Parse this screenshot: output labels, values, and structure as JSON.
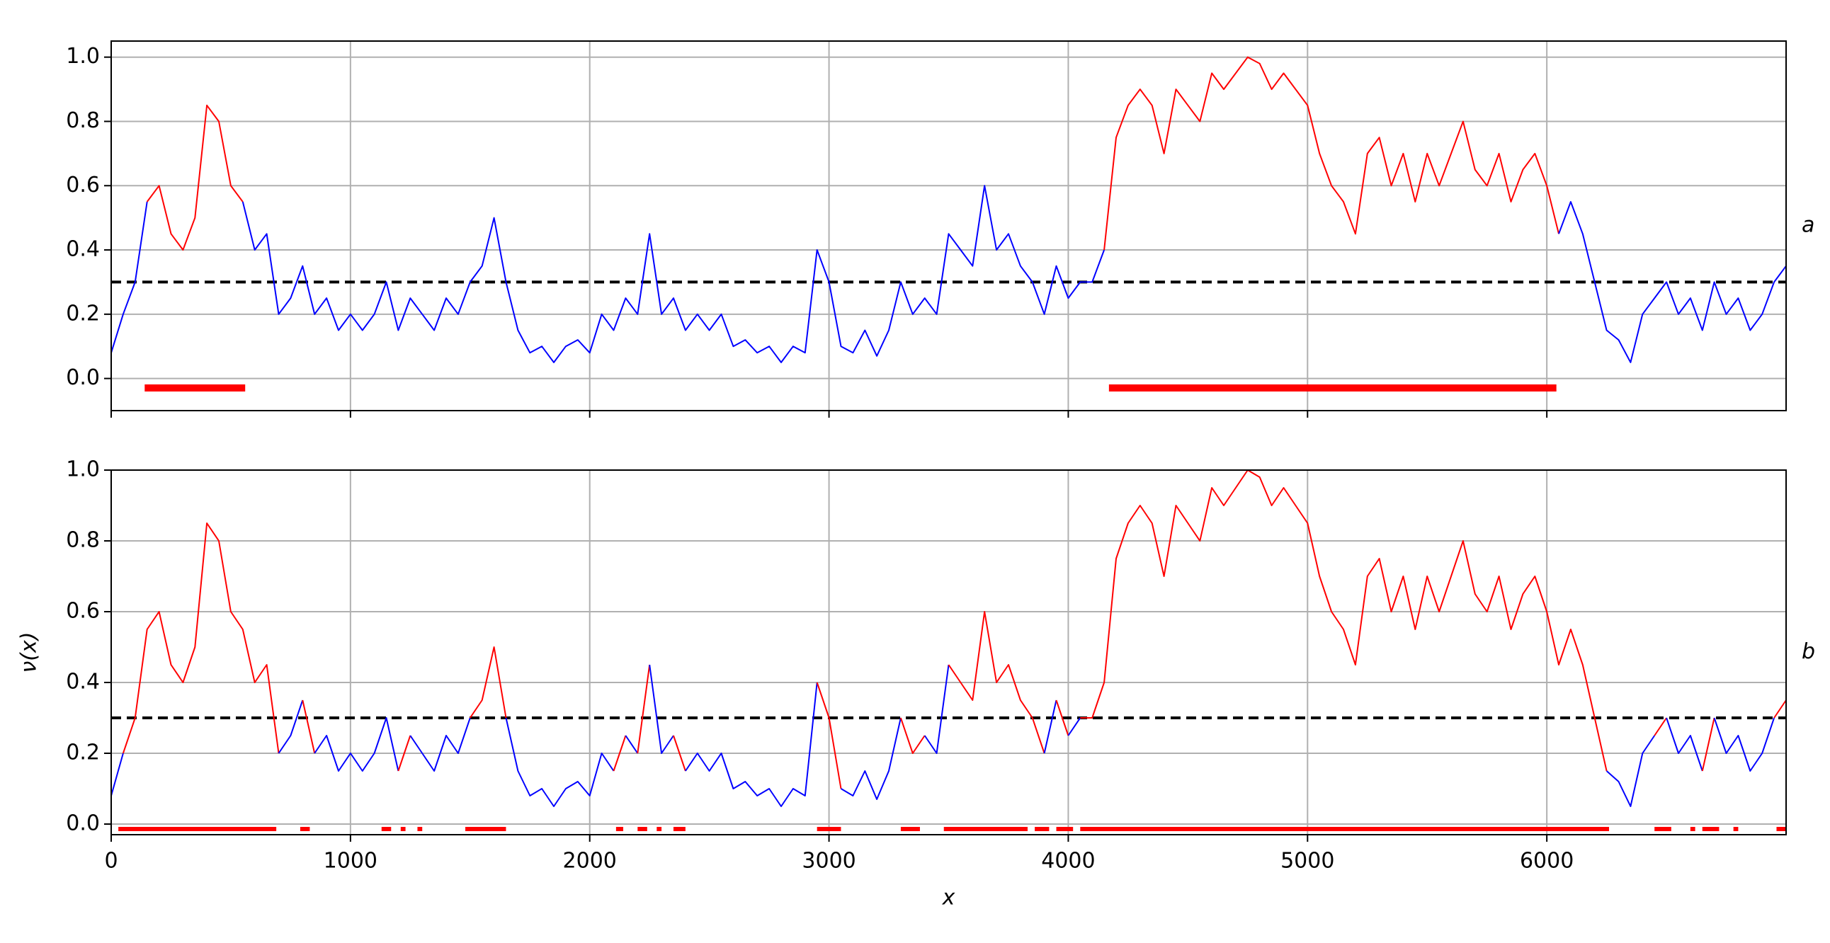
{
  "chart_data": [
    {
      "type": "line",
      "panel_label": "a",
      "xlim": [
        0,
        7000
      ],
      "ylim": [
        -0.1,
        1.05
      ],
      "xticks": [
        0,
        1000,
        2000,
        3000,
        4000,
        5000,
        6000
      ],
      "xtick_labels": false,
      "yticks": [
        {
          "value": 0,
          "label": "0.0"
        },
        {
          "value": 0.2,
          "label": "0.2"
        },
        {
          "value": 0.4,
          "label": "0.4"
        },
        {
          "value": 0.6,
          "label": "0.6"
        },
        {
          "value": 0.8,
          "label": "0.8"
        },
        {
          "value": 1,
          "label": "1.0"
        }
      ],
      "grid": true,
      "threshold": 0.3,
      "highlight_color": "#ff0000",
      "intervals": [
        [
          140,
          560
        ],
        [
          4170,
          6040
        ]
      ],
      "x": [
        0,
        50,
        100,
        150,
        200,
        250,
        300,
        350,
        400,
        450,
        500,
        550,
        600,
        650,
        700,
        750,
        800,
        850,
        900,
        950,
        1000,
        1050,
        1100,
        1150,
        1200,
        1250,
        1300,
        1350,
        1400,
        1450,
        1500,
        1550,
        1600,
        1650,
        1700,
        1750,
        1800,
        1850,
        1900,
        1950,
        2000,
        2050,
        2100,
        2150,
        2200,
        2250,
        2300,
        2350,
        2400,
        2450,
        2500,
        2550,
        2600,
        2650,
        2700,
        2750,
        2800,
        2850,
        2900,
        2950,
        3000,
        3050,
        3100,
        3150,
        3200,
        3250,
        3300,
        3350,
        3400,
        3450,
        3500,
        3550,
        3600,
        3650,
        3700,
        3750,
        3800,
        3850,
        3900,
        3950,
        4000,
        4050,
        4100,
        4150,
        4200,
        4250,
        4300,
        4350,
        4400,
        4450,
        4500,
        4550,
        4600,
        4650,
        4700,
        4750,
        4800,
        4850,
        4900,
        4950,
        5000,
        5050,
        5100,
        5150,
        5200,
        5250,
        5300,
        5350,
        5400,
        5450,
        5500,
        5550,
        5600,
        5650,
        5700,
        5750,
        5800,
        5850,
        5900,
        5950,
        6000,
        6050,
        6100,
        6150,
        6200,
        6250,
        6300,
        6350,
        6400,
        6450,
        6500,
        6550,
        6600,
        6650,
        6700,
        6750,
        6800,
        6850,
        6900,
        6950,
        7000
      ],
      "series": [
        {
          "color": "#0000ff",
          "values": [
            0.08,
            0.2,
            0.3,
            0.55,
            0.6,
            0.45,
            0.4,
            0.5,
            0.85,
            0.8,
            0.6,
            0.55,
            0.4,
            0.45,
            0.2,
            0.25,
            0.35,
            0.2,
            0.25,
            0.15,
            0.2,
            0.15,
            0.2,
            0.3,
            0.15,
            0.25,
            0.2,
            0.15,
            0.25,
            0.2,
            0.3,
            0.35,
            0.5,
            0.3,
            0.15,
            0.08,
            0.1,
            0.05,
            0.1,
            0.12,
            0.08,
            0.2,
            0.15,
            0.25,
            0.2,
            0.45,
            0.2,
            0.25,
            0.15,
            0.2,
            0.15,
            0.2,
            0.1,
            0.12,
            0.08,
            0.1,
            0.05,
            0.1,
            0.08,
            0.4,
            0.3,
            0.1,
            0.08,
            0.15,
            0.07,
            0.15,
            0.3,
            0.2,
            0.25,
            0.2,
            0.45,
            0.4,
            0.35,
            0.6,
            0.4,
            0.45,
            0.35,
            0.3,
            0.2,
            0.35,
            0.25,
            0.3,
            0.3,
            0.4,
            0.75,
            0.85,
            0.9,
            0.85,
            0.7,
            0.9,
            0.85,
            0.8,
            0.95,
            0.9,
            0.95,
            1.0,
            0.98,
            0.9,
            0.95,
            0.9,
            0.85,
            0.7,
            0.6,
            0.55,
            0.45,
            0.7,
            0.75,
            0.6,
            0.7,
            0.55,
            0.7,
            0.6,
            0.7,
            0.8,
            0.65,
            0.6,
            0.7,
            0.55,
            0.65,
            0.7,
            0.6,
            0.45,
            0.55,
            0.45,
            0.3,
            0.15,
            0.12,
            0.05,
            0.2,
            0.25,
            0.3,
            0.2,
            0.25,
            0.15,
            0.3,
            0.2,
            0.25,
            0.15,
            0.2,
            0.3,
            0.35
          ]
        }
      ]
    },
    {
      "type": "line",
      "panel_label": "b",
      "xlabel": "x",
      "ylabel": "ν(x)",
      "xlim": [
        0,
        7000
      ],
      "ylim": [
        -0.03,
        1.0
      ],
      "xticks": [
        0,
        1000,
        2000,
        3000,
        4000,
        5000,
        6000
      ],
      "xtick_labels": true,
      "yticks": [
        {
          "value": 0,
          "label": "0.0"
        },
        {
          "value": 0.2,
          "label": "0.2"
        },
        {
          "value": 0.4,
          "label": "0.4"
        },
        {
          "value": 0.6,
          "label": "0.6"
        },
        {
          "value": 0.8,
          "label": "0.8"
        },
        {
          "value": 1,
          "label": "1.0"
        }
      ],
      "grid": true,
      "threshold": 0.3,
      "highlight_color": "#ff0000",
      "intervals": [
        [
          30,
          690
        ],
        [
          790,
          830
        ],
        [
          1130,
          1170
        ],
        [
          1210,
          1230
        ],
        [
          1280,
          1300
        ],
        [
          1480,
          1650
        ],
        [
          2110,
          2140
        ],
        [
          2200,
          2240
        ],
        [
          2280,
          2300
        ],
        [
          2350,
          2400
        ],
        [
          2950,
          3050
        ],
        [
          3300,
          3380
        ],
        [
          3480,
          3830
        ],
        [
          3860,
          3920
        ],
        [
          3950,
          4020
        ],
        [
          4050,
          6260
        ],
        [
          6450,
          6520
        ],
        [
          6600,
          6620
        ],
        [
          6650,
          6720
        ],
        [
          6780,
          6800
        ],
        [
          6960,
          7000
        ]
      ],
      "x": [
        0,
        50,
        100,
        150,
        200,
        250,
        300,
        350,
        400,
        450,
        500,
        550,
        600,
        650,
        700,
        750,
        800,
        850,
        900,
        950,
        1000,
        1050,
        1100,
        1150,
        1200,
        1250,
        1300,
        1350,
        1400,
        1450,
        1500,
        1550,
        1600,
        1650,
        1700,
        1750,
        1800,
        1850,
        1900,
        1950,
        2000,
        2050,
        2100,
        2150,
        2200,
        2250,
        2300,
        2350,
        2400,
        2450,
        2500,
        2550,
        2600,
        2650,
        2700,
        2750,
        2800,
        2850,
        2900,
        2950,
        3000,
        3050,
        3100,
        3150,
        3200,
        3250,
        3300,
        3350,
        3400,
        3450,
        3500,
        3550,
        3600,
        3650,
        3700,
        3750,
        3800,
        3850,
        3900,
        3950,
        4000,
        4050,
        4100,
        4150,
        4200,
        4250,
        4300,
        4350,
        4400,
        4450,
        4500,
        4550,
        4600,
        4650,
        4700,
        4750,
        4800,
        4850,
        4900,
        4950,
        5000,
        5050,
        5100,
        5150,
        5200,
        5250,
        5300,
        5350,
        5400,
        5450,
        5500,
        5550,
        5600,
        5650,
        5700,
        5750,
        5800,
        5850,
        5900,
        5950,
        6000,
        6050,
        6100,
        6150,
        6200,
        6250,
        6300,
        6350,
        6400,
        6450,
        6500,
        6550,
        6600,
        6650,
        6700,
        6750,
        6800,
        6850,
        6900,
        6950,
        7000
      ],
      "series": [
        {
          "color": "#0000ff",
          "values": [
            0.08,
            0.2,
            0.3,
            0.55,
            0.6,
            0.45,
            0.4,
            0.5,
            0.85,
            0.8,
            0.6,
            0.55,
            0.4,
            0.45,
            0.2,
            0.25,
            0.35,
            0.2,
            0.25,
            0.15,
            0.2,
            0.15,
            0.2,
            0.3,
            0.15,
            0.25,
            0.2,
            0.15,
            0.25,
            0.2,
            0.3,
            0.35,
            0.5,
            0.3,
            0.15,
            0.08,
            0.1,
            0.05,
            0.1,
            0.12,
            0.08,
            0.2,
            0.15,
            0.25,
            0.2,
            0.45,
            0.2,
            0.25,
            0.15,
            0.2,
            0.15,
            0.2,
            0.1,
            0.12,
            0.08,
            0.1,
            0.05,
            0.1,
            0.08,
            0.4,
            0.3,
            0.1,
            0.08,
            0.15,
            0.07,
            0.15,
            0.3,
            0.2,
            0.25,
            0.2,
            0.45,
            0.4,
            0.35,
            0.6,
            0.4,
            0.45,
            0.35,
            0.3,
            0.2,
            0.35,
            0.25,
            0.3,
            0.3,
            0.4,
            0.75,
            0.85,
            0.9,
            0.85,
            0.7,
            0.9,
            0.85,
            0.8,
            0.95,
            0.9,
            0.95,
            1.0,
            0.98,
            0.9,
            0.95,
            0.9,
            0.85,
            0.7,
            0.6,
            0.55,
            0.45,
            0.7,
            0.75,
            0.6,
            0.7,
            0.55,
            0.7,
            0.6,
            0.7,
            0.8,
            0.65,
            0.6,
            0.7,
            0.55,
            0.65,
            0.7,
            0.6,
            0.45,
            0.55,
            0.45,
            0.3,
            0.15,
            0.12,
            0.05,
            0.2,
            0.25,
            0.3,
            0.2,
            0.25,
            0.15,
            0.3,
            0.2,
            0.25,
            0.15,
            0.2,
            0.3,
            0.35
          ]
        }
      ]
    }
  ]
}
